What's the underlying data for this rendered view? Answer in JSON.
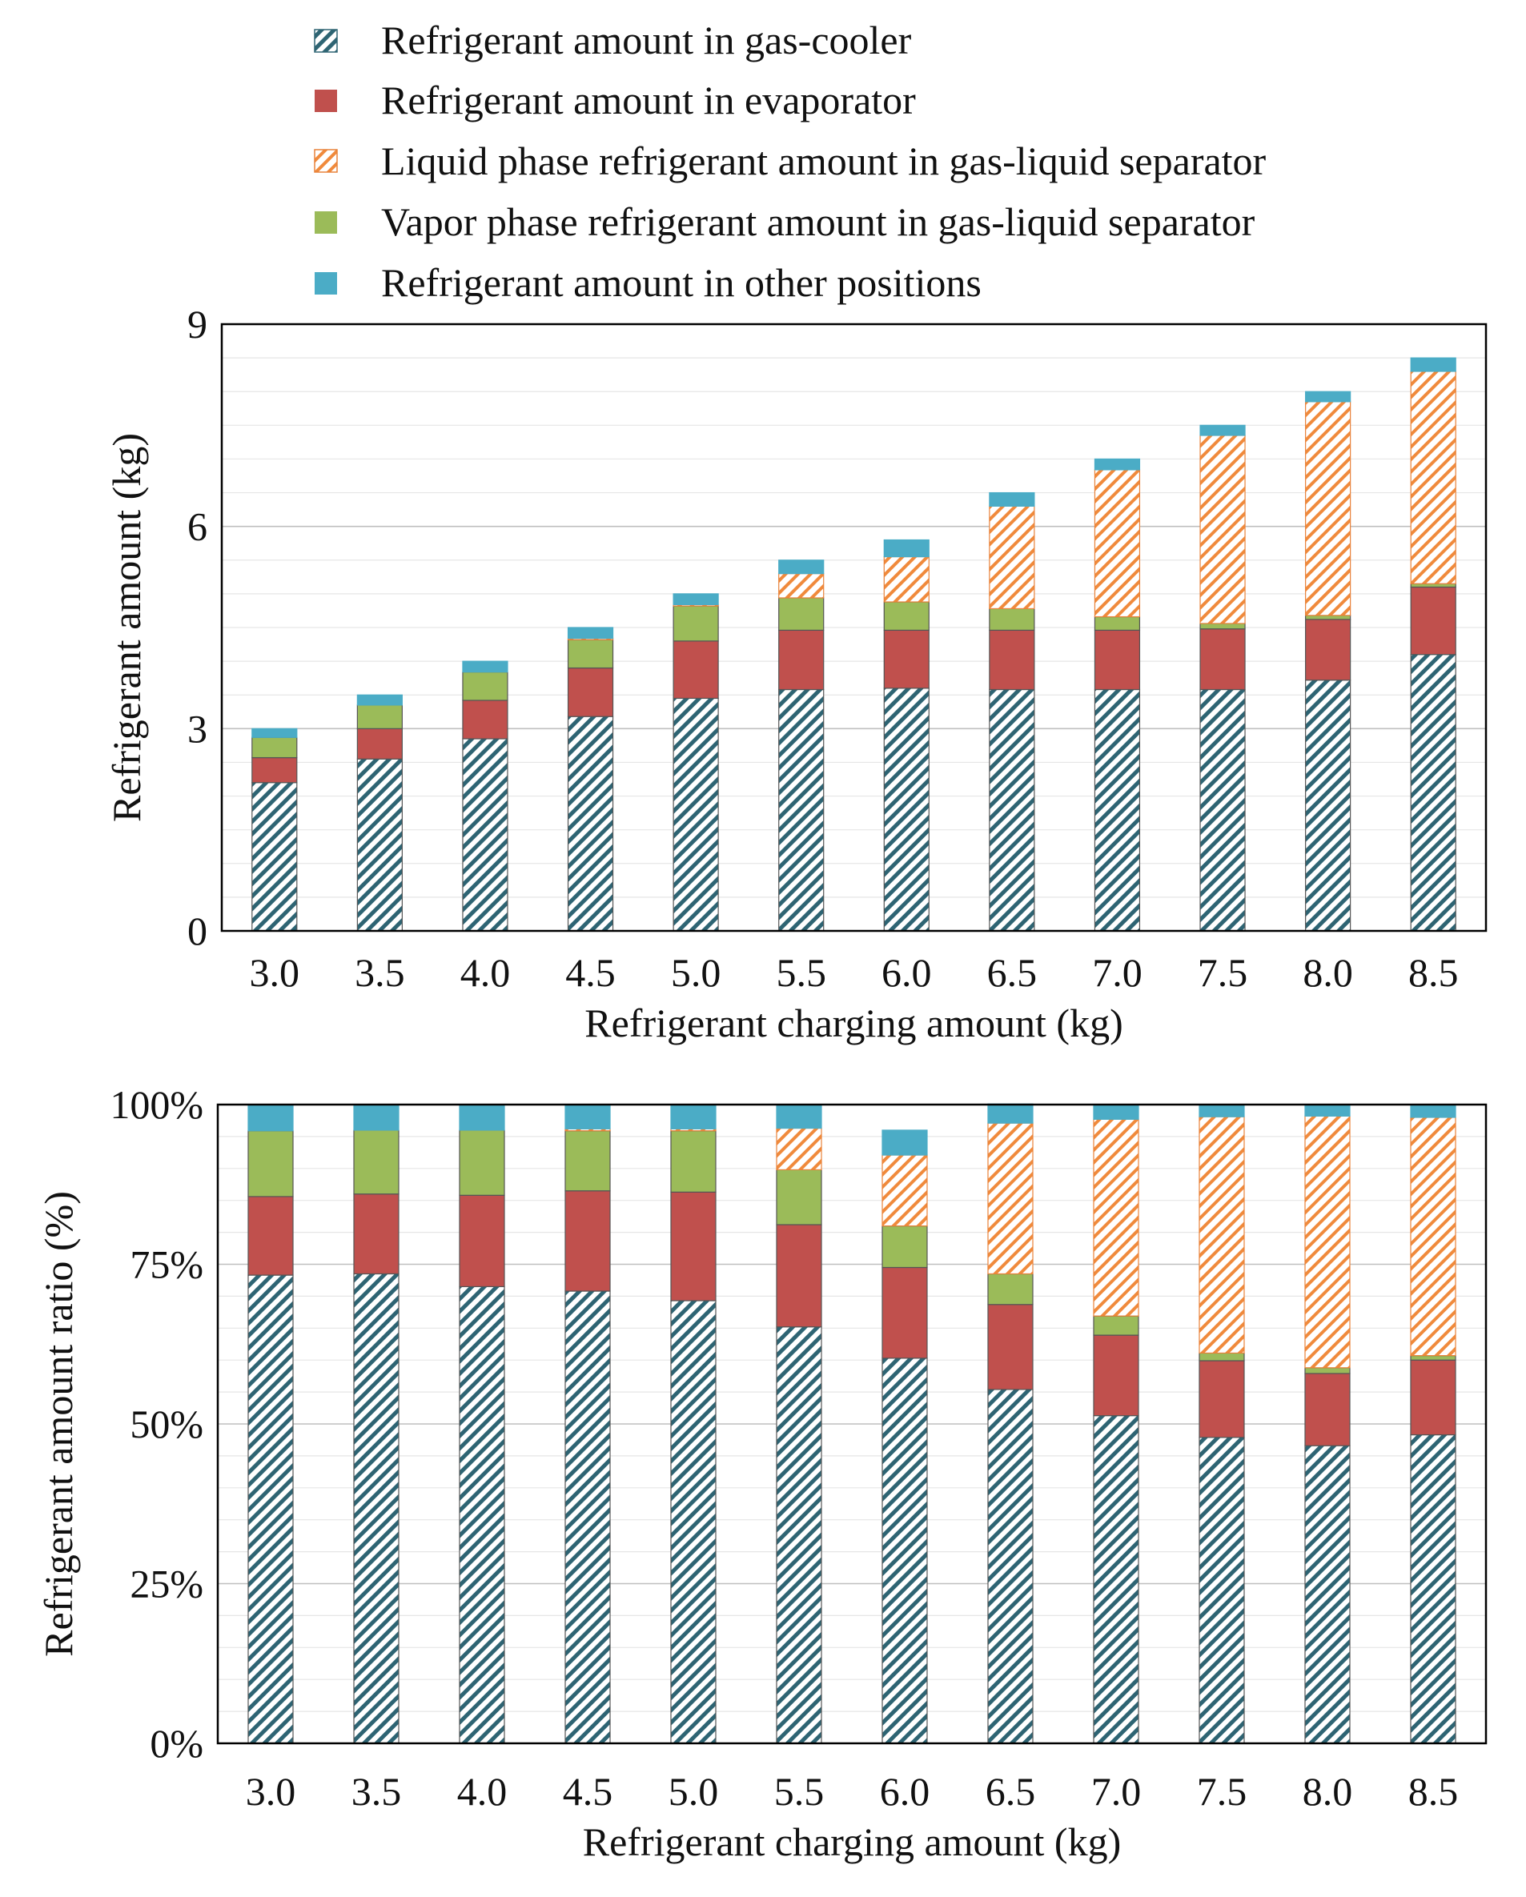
{
  "legend": [
    {
      "id": "gc",
      "label": "Refrigerant amount in gas-cooler"
    },
    {
      "id": "ev",
      "label": "Refrigerant amount in evaporator"
    },
    {
      "id": "liq",
      "label": "Liquid phase refrigerant amount in gas-liquid separator"
    },
    {
      "id": "vap",
      "label": "Vapor phase refrigerant amount in gas-liquid separator"
    },
    {
      "id": "oth",
      "label": "Refrigerant amount in other positions"
    }
  ],
  "colors": {
    "gc_fill": "#2e6473",
    "gc_bg": "#ffffff",
    "ev": "#c0504d",
    "liq_fill": "#f08a3c",
    "liq_bg": "#ffffff",
    "vap": "#9bbb59",
    "oth": "#4bacc6",
    "bar_edge_main": "#555555",
    "bar_edge_liq": "#e8823a"
  },
  "chart_data": [
    {
      "id": "absolute",
      "type": "bar",
      "stacked": true,
      "categories": [
        "3.0",
        "3.5",
        "4.0",
        "4.5",
        "5.0",
        "5.5",
        "6.0",
        "6.5",
        "7.0",
        "7.5",
        "8.0",
        "8.5"
      ],
      "series": [
        {
          "id": "gc",
          "name": "Refrigerant amount in gas-cooler",
          "values": [
            2.2,
            2.55,
            2.85,
            3.18,
            3.45,
            3.58,
            3.6,
            3.58,
            3.58,
            3.58,
            3.72,
            4.1
          ]
        },
        {
          "id": "ev",
          "name": "Refrigerant amount in evaporator",
          "values": [
            0.37,
            0.45,
            0.57,
            0.72,
            0.85,
            0.88,
            0.86,
            0.88,
            0.88,
            0.9,
            0.9,
            1.0
          ]
        },
        {
          "id": "vap",
          "name": "Vapor phase refrigerant amount in gas-liquid separator",
          "values": [
            0.3,
            0.35,
            0.42,
            0.42,
            0.52,
            0.48,
            0.42,
            0.32,
            0.2,
            0.08,
            0.06,
            0.05
          ]
        },
        {
          "id": "liq",
          "name": "Liquid phase refrigerant amount in gas-liquid separator",
          "values": [
            0.0,
            0.0,
            0.0,
            0.02,
            0.02,
            0.36,
            0.67,
            1.52,
            2.18,
            2.79,
            3.17,
            3.15
          ]
        },
        {
          "id": "oth",
          "name": "Refrigerant amount in other positions",
          "values": [
            0.13,
            0.15,
            0.16,
            0.16,
            0.16,
            0.2,
            0.25,
            0.2,
            0.16,
            0.15,
            0.15,
            0.2
          ]
        }
      ],
      "xlabel": "Refrigerant charging amount (kg)",
      "ylabel": "Refrigerant amount (kg)",
      "ylim": [
        0,
        9
      ],
      "yticks": [
        0,
        3,
        6,
        9
      ],
      "ytick_labels": [
        "0",
        "3",
        "6",
        "9"
      ],
      "grid": true
    },
    {
      "id": "ratio",
      "type": "bar",
      "stacked": true,
      "categories": [
        "3.0",
        "3.5",
        "4.0",
        "4.5",
        "5.0",
        "5.5",
        "6.0",
        "6.5",
        "7.0",
        "7.5",
        "8.0",
        "8.5"
      ],
      "series": [
        {
          "id": "gc",
          "name": "Refrigerant amount in gas-cooler",
          "values": [
            73.3,
            73.5,
            71.5,
            70.8,
            69.3,
            65.2,
            60.3,
            55.4,
            51.3,
            47.9,
            46.6,
            48.3
          ]
        },
        {
          "id": "ev",
          "name": "Refrigerant amount in evaporator",
          "values": [
            12.3,
            12.5,
            14.3,
            15.7,
            17.0,
            16.0,
            14.2,
            13.3,
            12.6,
            12.0,
            11.3,
            11.7
          ]
        },
        {
          "id": "vap",
          "name": "Vapor phase refrigerant amount in gas-liquid separator",
          "values": [
            10.3,
            10.0,
            10.2,
            9.4,
            9.6,
            8.6,
            6.5,
            4.8,
            3.0,
            1.2,
            0.9,
            0.7
          ]
        },
        {
          "id": "liq",
          "name": "Liquid phase refrigerant amount in gas-liquid separator",
          "values": [
            0.0,
            0.0,
            0.0,
            0.3,
            0.3,
            6.5,
            11.1,
            23.6,
            30.8,
            37.0,
            39.4,
            37.3
          ]
        },
        {
          "id": "oth",
          "name": "Refrigerant amount in other positions",
          "values": [
            4.1,
            4.0,
            4.0,
            3.8,
            3.8,
            3.7,
            3.9,
            3.0,
            2.3,
            1.9,
            1.8,
            2.0
          ]
        }
      ],
      "xlabel": "Refrigerant charging amount (kg)",
      "ylabel": "Refrigerant amount ratio (%)",
      "ylim": [
        0,
        100
      ],
      "yticks": [
        0,
        25,
        50,
        75,
        100
      ],
      "ytick_labels": [
        "0%",
        "25%",
        "50%",
        "75%",
        "100%"
      ],
      "grid": true
    }
  ]
}
